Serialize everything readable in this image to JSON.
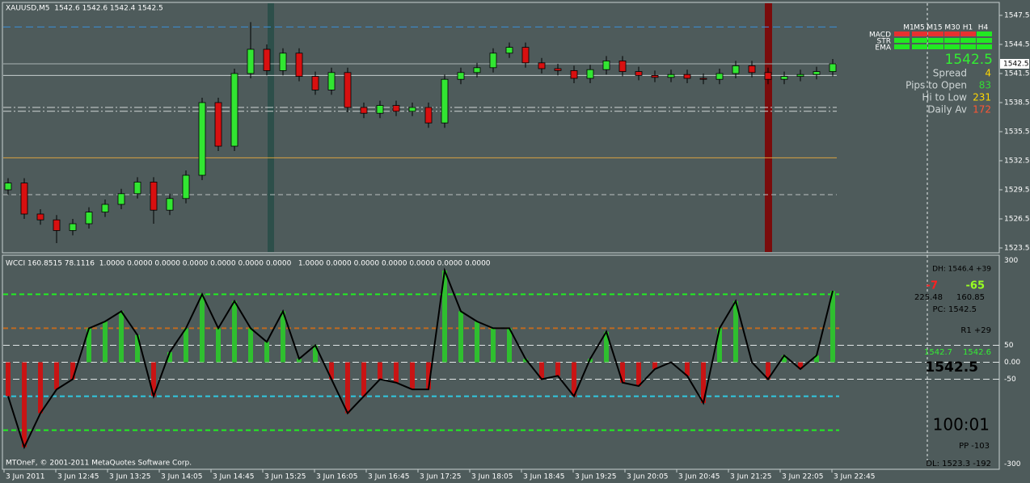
{
  "header": "XAUUSD,M5  1542.6 1542.6 1542.4 1542.5",
  "indicator_header": "WCCI 160.8515 78.1116  1.0000 0.0000 0.0000 0.0000 0.0000 0.0000 0.0000   1.0000 0.0000 0.0000 0.0000 0.0000 0.0000 0.0000",
  "footer": "MTOneF, © 2001-2011 MetaQuotes Software Corp.",
  "info_panel": {
    "timeframes": [
      "M1",
      "M5",
      "M15",
      "M30",
      "H1",
      "H4"
    ],
    "rows": [
      "MACD",
      "STR",
      "EMA"
    ],
    "price": "1542.5",
    "stats": [
      {
        "label": "Spread",
        "value": "4",
        "color": "#ffd700"
      },
      {
        "label": "Pips to Open",
        "value": "83",
        "color": "#33dd33"
      },
      {
        "label": "Hi to Low",
        "value": "231",
        "color": "#ffd700"
      },
      {
        "label": "Daily Av",
        "value": "172",
        "color": "#ff5533"
      }
    ]
  },
  "indicator_panel": {
    "dh": "DH: 1546.4 +39",
    "a": "-7",
    "b": "-65",
    "c": "225.48",
    "d": "160.85",
    "pc": "PC: 1542.5",
    "r1": "R1 +29",
    "e": "1542.7",
    "f": "1542.6",
    "price": "1542.5",
    "clock": "100:01",
    "pp": "PP -103",
    "dl": "DL: 1523.3 -192"
  },
  "chart_data": [
    {
      "type": "candlestick",
      "last_price": 1542.5,
      "ylim": [
        1523,
        1548.75
      ],
      "yticks": [
        1547.5,
        1544.5,
        1541.5,
        1538.5,
        1535.5,
        1532.5,
        1529.5,
        1526.5,
        1523.5
      ],
      "xticks": [
        "3 Jun 2011",
        "3 Jun 12:45",
        "3 Jun 13:25",
        "3 Jun 14:05",
        "3 Jun 14:45",
        "3 Jun 15:25",
        "3 Jun 16:05",
        "3 Jun 16:45",
        "3 Jun 17:25",
        "3 Jun 18:05",
        "3 Jun 18:45",
        "3 Jun 19:25",
        "3 Jun 20:05",
        "3 Jun 20:45",
        "3 Jun 21:25",
        "3 Jun 22:05",
        "3 Jun 22:45"
      ],
      "up_color": "#32e632",
      "down_color": "#d81010",
      "levels": [
        {
          "value": 1546.3,
          "color": "#3a8fd9",
          "dash": "9 5"
        },
        {
          "value": 1542.5,
          "color": "#a9b3b3",
          "dash": ""
        },
        {
          "value": 1541.3,
          "color": "#c8cfcf",
          "dash": ""
        },
        {
          "value": 1538.0,
          "color": "#d0d6d6",
          "dash": "10 3 2 3"
        },
        {
          "value": 1537.6,
          "color": "#d0d6d6",
          "dash": "10 3 2 3"
        },
        {
          "value": 1532.8,
          "color": "#d9a040",
          "dash": ""
        },
        {
          "value": 1529.0,
          "color": "#b9c2c2",
          "dash": "6 4"
        }
      ],
      "open": [
        1529.5,
        1530.2,
        1527.0,
        1526.4,
        1525.3,
        1526.0,
        1527.2,
        1528.0,
        1529.1,
        1530.3,
        1527.4,
        1528.6,
        1531.0,
        1538.5,
        1534.0,
        1541.5,
        1544.0,
        1541.8,
        1543.6,
        1541.2,
        1539.8,
        1541.6,
        1538.0,
        1537.4,
        1538.2,
        1537.6,
        1538.0,
        1536.4,
        1540.9,
        1541.6,
        1542.1,
        1543.6,
        1544.2,
        1542.6,
        1542.0,
        1541.8,
        1541.0,
        1541.9,
        1542.8,
        1541.7,
        1541.3,
        1541.1,
        1541.4,
        1541.0,
        1540.9,
        1541.5,
        1542.3,
        1541.6,
        1540.9,
        1541.2,
        1541.4,
        1541.7
      ],
      "high": [
        1530.7,
        1530.7,
        1527.5,
        1526.9,
        1526.5,
        1527.7,
        1528.5,
        1529.6,
        1530.8,
        1530.8,
        1529.1,
        1531.5,
        1539.0,
        1539.0,
        1542.0,
        1546.8,
        1544.5,
        1544.1,
        1544.1,
        1541.7,
        1542.1,
        1542.1,
        1538.5,
        1538.7,
        1538.7,
        1538.5,
        1538.5,
        1541.4,
        1542.1,
        1542.6,
        1544.1,
        1544.7,
        1544.7,
        1543.1,
        1542.5,
        1542.3,
        1542.4,
        1543.3,
        1543.3,
        1542.2,
        1541.8,
        1541.9,
        1541.9,
        1541.5,
        1542.0,
        1542.8,
        1542.8,
        1542.1,
        1541.7,
        1541.9,
        1542.2,
        1543.0
      ],
      "low": [
        1529.0,
        1526.5,
        1525.9,
        1524.0,
        1524.8,
        1525.5,
        1526.7,
        1527.5,
        1528.6,
        1526.0,
        1526.9,
        1528.1,
        1530.5,
        1533.5,
        1533.5,
        1541.0,
        1541.3,
        1541.3,
        1540.7,
        1539.3,
        1539.3,
        1537.5,
        1536.9,
        1536.9,
        1537.1,
        1537.1,
        1535.9,
        1535.9,
        1540.4,
        1541.1,
        1541.6,
        1543.1,
        1542.1,
        1541.5,
        1541.3,
        1540.5,
        1540.5,
        1541.4,
        1541.2,
        1540.8,
        1540.6,
        1540.6,
        1540.5,
        1540.4,
        1540.4,
        1541.0,
        1541.1,
        1540.4,
        1540.4,
        1540.7,
        1540.9,
        1541.2
      ],
      "close": [
        1530.2,
        1527.0,
        1526.4,
        1525.3,
        1526.0,
        1527.2,
        1528.0,
        1529.1,
        1530.3,
        1527.4,
        1528.6,
        1531.0,
        1538.5,
        1534.0,
        1541.5,
        1544.0,
        1541.8,
        1543.6,
        1541.2,
        1539.8,
        1541.6,
        1538.0,
        1537.4,
        1538.2,
        1537.6,
        1538.0,
        1536.4,
        1540.9,
        1541.6,
        1542.1,
        1543.6,
        1544.2,
        1542.6,
        1542.0,
        1541.8,
        1541.0,
        1541.9,
        1542.8,
        1541.7,
        1541.3,
        1541.1,
        1541.4,
        1541.0,
        1540.9,
        1541.5,
        1542.3,
        1541.6,
        1540.9,
        1541.2,
        1541.4,
        1541.7,
        1542.5
      ]
    },
    {
      "type": "line",
      "histogram": true,
      "ylim": [
        -315,
        315
      ],
      "yticks": [
        300,
        50,
        {
          "value": 0,
          "label": "0.00"
        },
        -50,
        -300
      ],
      "levels": [
        {
          "value": 200,
          "color": "#22ee22"
        },
        {
          "value": 100,
          "color": "#c06a20"
        },
        {
          "value": -100,
          "color": "#30c8e0"
        },
        {
          "value": -200,
          "color": "#22ee22"
        }
      ],
      "positive_color": "#2fbf2f",
      "negative_color": "#c81414",
      "series": [
        {
          "color": "#000000",
          "values": [
            -100,
            -250,
            -150,
            -80,
            -50,
            100,
            120,
            150,
            80,
            -100,
            30,
            100,
            200,
            100,
            180,
            100,
            60,
            150,
            10,
            50,
            -50,
            -150,
            -100,
            -50,
            -60,
            -80,
            -80,
            270,
            150,
            120,
            100,
            100,
            10,
            -50,
            -40,
            -100,
            10,
            90,
            -60,
            -70,
            -20,
            0,
            -40,
            -120,
            100,
            180,
            0,
            -50,
            20,
            -20,
            20,
            210
          ]
        }
      ]
    }
  ]
}
